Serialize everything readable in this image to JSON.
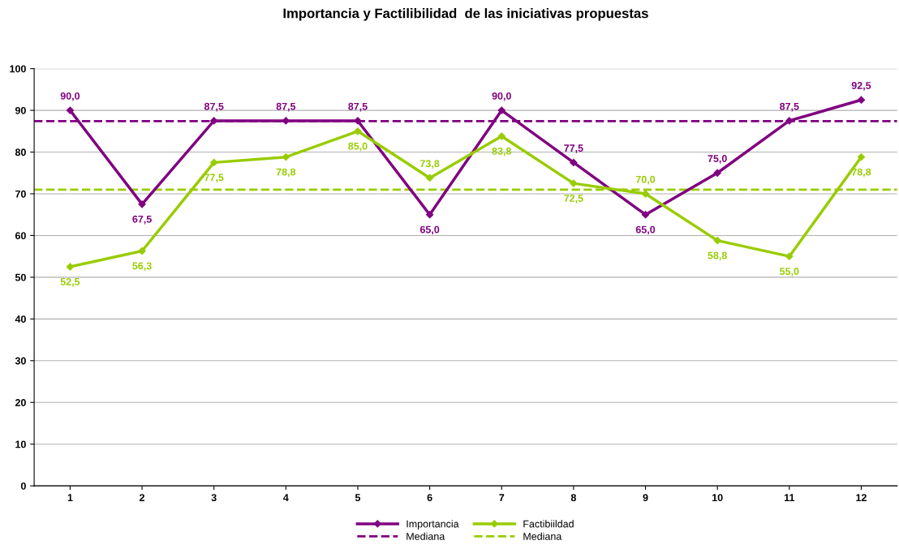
{
  "chart_data": {
    "type": "line",
    "title": "Importancia y Factilibilidad  de las iniciativas propuestas",
    "categories": [
      "1",
      "2",
      "3",
      "4",
      "5",
      "6",
      "7",
      "8",
      "9",
      "10",
      "11",
      "12"
    ],
    "series": [
      {
        "name": "Importancia",
        "color": "#800080",
        "values": [
          90.0,
          67.5,
          87.5,
          87.5,
          87.5,
          65.0,
          90.0,
          77.5,
          65.0,
          75.0,
          87.5,
          92.5
        ],
        "value_labels": [
          "90,0",
          "67,5",
          "87,5",
          "87,5",
          "87,5",
          "65,0",
          "90,0",
          "77,5",
          "65,0",
          "75,0",
          "87,5",
          "92,5"
        ]
      },
      {
        "name": "Factibiildad",
        "color": "#99cc00",
        "values": [
          52.5,
          56.3,
          77.5,
          78.8,
          85.0,
          73.8,
          83.8,
          72.5,
          70.0,
          58.8,
          55.0,
          78.8
        ],
        "value_labels": [
          "52,5",
          "56,3",
          "77,5",
          "78,8",
          "85,0",
          "73,8",
          "83,8",
          "72,5",
          "70,0",
          "58,8",
          "55,0",
          "78,8"
        ]
      }
    ],
    "ref_lines": [
      {
        "axis": "y",
        "value": 87.4,
        "label": "Mediana",
        "color": "#800080",
        "line_style": "dashed"
      },
      {
        "axis": "y",
        "value": 71,
        "label": "Mediana",
        "color": "#99cc00",
        "line_style": "dashed"
      }
    ],
    "ylim": [
      0,
      100
    ],
    "yticks": [
      0,
      10,
      20,
      30,
      40,
      50,
      60,
      70,
      80,
      90,
      100
    ],
    "grid": "y",
    "legend": "bottom",
    "marker": "diamond",
    "line_style": "solid"
  }
}
